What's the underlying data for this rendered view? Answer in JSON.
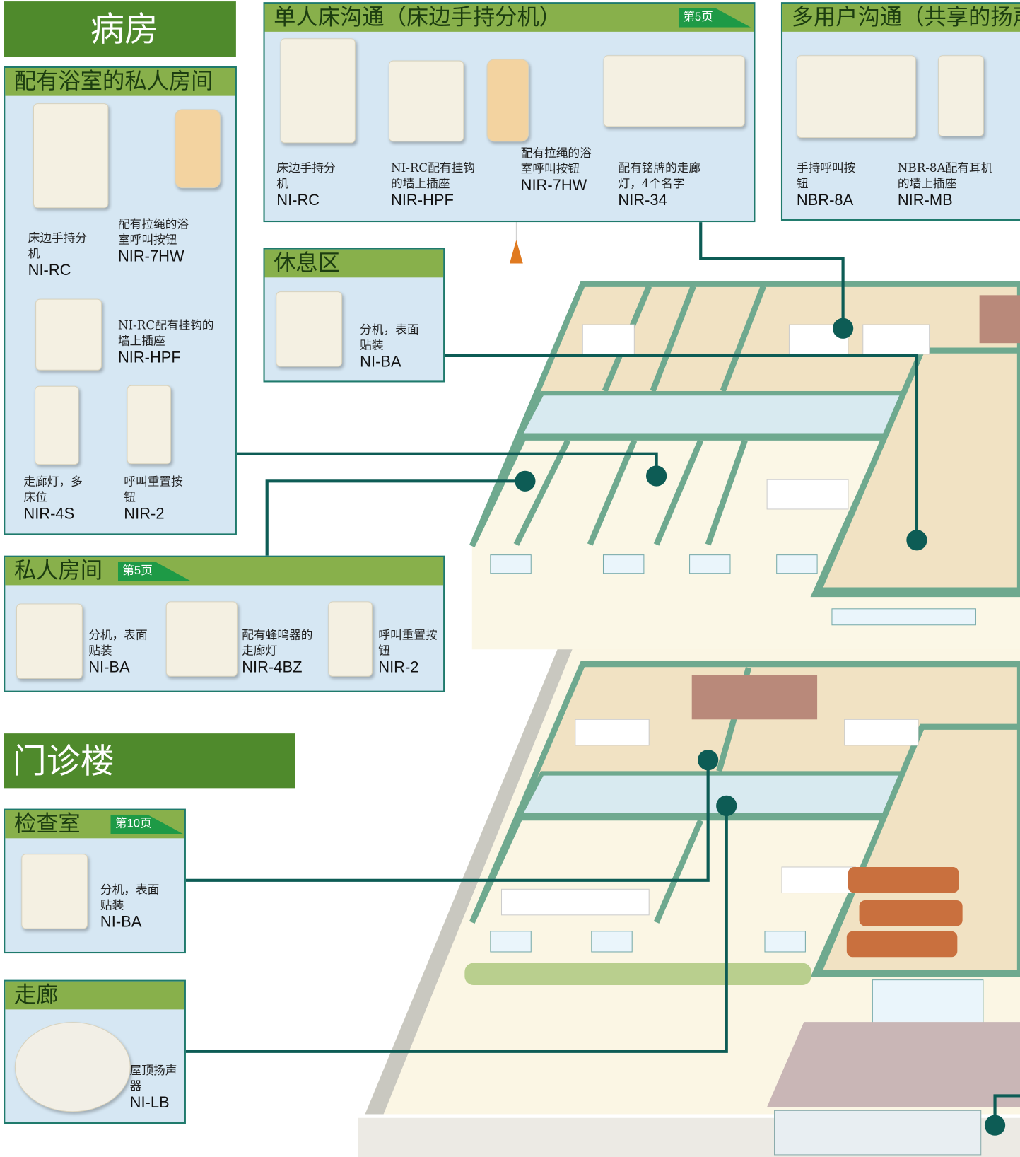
{
  "ward": {
    "title": "病房"
  },
  "private_bath": {
    "title": "配有浴室的私人房间",
    "items": [
      {
        "desc": "床边手持分机",
        "model": "NI-RC"
      },
      {
        "desc": "配有拉绳的浴室呼叫按钮",
        "model": "NIR-7HW"
      },
      {
        "desc": "NI-RC配有挂钩的墙上插座",
        "model": "NIR-HPF"
      },
      {
        "desc": "走廊灯，多床位",
        "model": "NIR-4S"
      },
      {
        "desc": "呼叫重置按钮",
        "model": "NIR-2"
      }
    ]
  },
  "single_bed": {
    "title": "单人床沟通（床边手持分机）",
    "page": "第5页",
    "items": [
      {
        "desc": "床边手持分机",
        "model": "NI-RC"
      },
      {
        "desc": "NI-RC配有挂钩的墙上插座",
        "model": "NIR-HPF"
      },
      {
        "desc": "配有拉绳的浴室呼叫按钮",
        "model": "NIR-7HW"
      },
      {
        "desc": "配有铭牌的走廊灯，4个名字",
        "model": "NIR-34"
      }
    ]
  },
  "multi_user": {
    "title": "多用户沟通（共享的扬声器",
    "items": [
      {
        "desc": "手持呼叫按钮",
        "model": "NBR-8A"
      },
      {
        "desc": "NBR-8A配有耳机的墙上插座",
        "model": "NIR-MB"
      }
    ]
  },
  "lounge": {
    "title": "休息区",
    "items": [
      {
        "desc": "分机，表面贴装",
        "model": "NI-BA"
      }
    ]
  },
  "private_room": {
    "title": "私人房间",
    "page": "第5页",
    "items": [
      {
        "desc": "分机，表面贴装",
        "model": "NI-BA"
      },
      {
        "desc": "配有蜂鸣器的走廊灯",
        "model": "NIR-4BZ"
      },
      {
        "desc": "呼叫重置按钮",
        "model": "NIR-2"
      }
    ]
  },
  "outpatient": {
    "title": "门诊楼"
  },
  "exam_room": {
    "title": "检查室",
    "page": "第10页",
    "items": [
      {
        "desc": "分机，表面贴装",
        "model": "NI-BA"
      }
    ]
  },
  "corridor": {
    "title": "走廊",
    "items": [
      {
        "desc": "屋顶扬声器",
        "model": "NI-LB"
      }
    ]
  }
}
